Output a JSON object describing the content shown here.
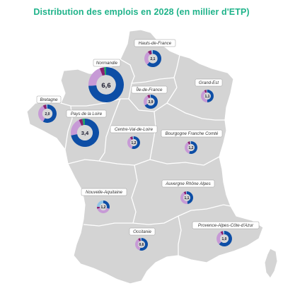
{
  "title": "Distribution des emplois en 2028 (en millier d'ETP)",
  "colors": {
    "segment_a": "#0d4ea6",
    "segment_b": "#c79ad6",
    "segment_c": "#8a1f6e",
    "segment_d": "#8fc4e8",
    "segment_e": "#22a06b",
    "land": "#d4d4d4",
    "border": "#ffffff",
    "center": "#d7d7d7"
  },
  "regions": [
    {
      "id": "hauts-de-france",
      "label": "Hauts-de-France",
      "value": "2,1",
      "segments": [
        0.62,
        0.28,
        0.07,
        0.03,
        0.0
      ]
    },
    {
      "id": "normandie",
      "label": "Normandie",
      "value": "6,6",
      "segments": [
        0.74,
        0.2,
        0.04,
        0.0,
        0.02
      ]
    },
    {
      "id": "ile-de-france",
      "label": "Île-de-France",
      "value": "3,9",
      "segments": [
        0.66,
        0.26,
        0.06,
        0.02,
        0.0
      ]
    },
    {
      "id": "grand-est",
      "label": "Grand-Est",
      "value": "1,1",
      "segments": [
        0.5,
        0.42,
        0.06,
        0.02,
        0.0
      ]
    },
    {
      "id": "bretagne",
      "label": "Bretagne",
      "value": "2,0",
      "segments": [
        0.58,
        0.34,
        0.06,
        0.02,
        0.0
      ]
    },
    {
      "id": "pays-de-la-loire",
      "label": "Pays de la Loire",
      "value": "3,4",
      "segments": [
        0.72,
        0.21,
        0.04,
        0.0,
        0.03
      ]
    },
    {
      "id": "centre-val-de-loire",
      "label": "Centre-Val-de-Loire",
      "value": "1,2",
      "segments": [
        0.55,
        0.35,
        0.07,
        0.03,
        0.0
      ]
    },
    {
      "id": "bourgogne-franche-comte",
      "label": "Bourgogne Franche Comté",
      "value": "1,2",
      "segments": [
        0.55,
        0.36,
        0.06,
        0.03,
        0.0
      ]
    },
    {
      "id": "auvergne-rhone-alpes",
      "label": "Auvergne Rhône Alpes",
      "value": "1,1",
      "segments": [
        0.48,
        0.44,
        0.06,
        0.02,
        0.0
      ]
    },
    {
      "id": "nouvelle-aquitaine",
      "label": "Nouvelle-Aquitaine",
      "value": "1,2",
      "segments": [
        0.3,
        0.4,
        0.05,
        0.25,
        0.0
      ]
    },
    {
      "id": "occitanie",
      "label": "Occitanie",
      "value": "0,6",
      "segments": [
        0.55,
        0.36,
        0.06,
        0.03,
        0.0
      ]
    },
    {
      "id": "provence-alpes-cote-d-azur",
      "label": "Provence-Alpes-Côte-d'Azur",
      "value": "1,0",
      "segments": [
        0.62,
        0.3,
        0.05,
        0.03,
        0.0
      ]
    }
  ]
}
